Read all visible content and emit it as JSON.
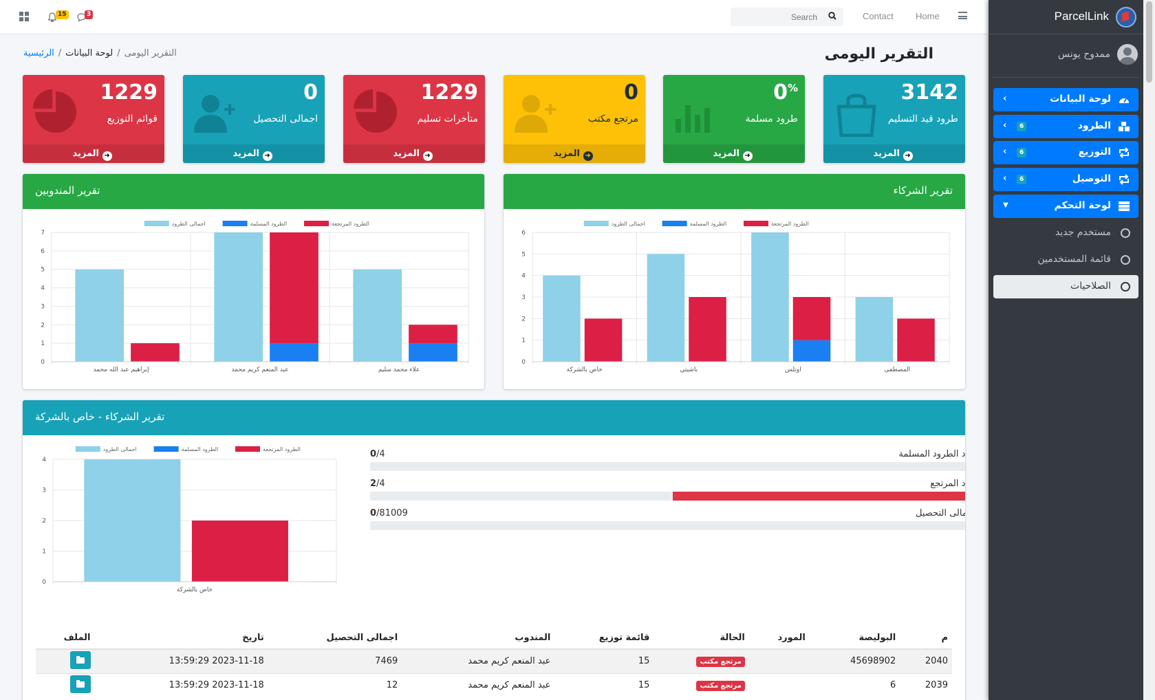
{
  "app": {
    "name": "ParcelLink"
  },
  "topbar": {
    "home": "Home",
    "contact": "Contact",
    "search_placeholder": "Search",
    "notifications_count": "15",
    "messages_count": "3"
  },
  "sidebar": {
    "user_name": "ممدوح يونس",
    "items": [
      {
        "label": "لوحة البيانات",
        "icon": "tachometer-icon",
        "badge": ""
      },
      {
        "label": "الطرود",
        "icon": "boxes-icon",
        "badge": "6"
      },
      {
        "label": "التوزيع",
        "icon": "retweet-icon",
        "badge": "6"
      },
      {
        "label": "التوصيل",
        "icon": "retweet-icon",
        "badge": "6"
      },
      {
        "label": "لوحة التحكم",
        "icon": "server-icon",
        "badge": ""
      }
    ],
    "sub_items": [
      {
        "label": "مستخدم جديد"
      },
      {
        "label": "قائمة المستخدمين"
      },
      {
        "label": "الصلاحيات"
      }
    ]
  },
  "page": {
    "title": "التقرير اليومى",
    "breadcrumb": {
      "home": "الرئيسية",
      "section": "لوحة البيانات",
      "current": "التقرير اليومى"
    }
  },
  "boxes": [
    {
      "value": "3142",
      "suffix": "",
      "label": "طرود قيد التسليم",
      "more": "المزيد",
      "color": "#17a2b8",
      "icon": "shopping-bag-icon"
    },
    {
      "value": "0",
      "suffix": "%",
      "label": "طرود مسلمة",
      "more": "المزيد",
      "color": "#28a745",
      "icon": "bar-chart-icon"
    },
    {
      "value": "0",
      "suffix": "",
      "label": "مرتجع مكتب",
      "more": "المزيد",
      "color": "#ffc107",
      "icon": "user-plus-icon"
    },
    {
      "value": "1229",
      "suffix": "",
      "label": "متأخرات تسليم",
      "more": "المزيد",
      "color": "#dc3545",
      "icon": "pie-chart-icon"
    },
    {
      "value": "0",
      "suffix": "",
      "label": "اجمالى التحصيل",
      "more": "المزيد",
      "color": "#17a2b8",
      "icon": "user-plus-icon"
    },
    {
      "value": "1229",
      "suffix": "",
      "label": "قوائم التوزيع",
      "more": "المزيد",
      "color": "#dc3545",
      "icon": "pie-chart-icon"
    }
  ],
  "cards": {
    "partners": "تقرير الشركاء",
    "delegates": "تقرير المندوبين",
    "company": "تقرير الشركاء - خاص بالشركة"
  },
  "legend": {
    "total": "اجمالى الطرود",
    "delivered": "الطرود المسلمة",
    "returned": "الطرود المرتجعة"
  },
  "colors": {
    "total": "#8ed1e8",
    "delivered": "#1a7ff0",
    "returned": "#dc1f45"
  },
  "chart_data": [
    {
      "type": "bar",
      "title": "تقرير الشركاء",
      "categories": [
        "خاص بالشركة",
        "باشيتي",
        "اوتلس",
        "المصطفى"
      ],
      "series": [
        {
          "name": "اجمالى الطرود",
          "values": [
            4,
            5,
            6,
            3
          ]
        },
        {
          "name": "الطرود المسلمة",
          "values": [
            0,
            0,
            1,
            0
          ]
        },
        {
          "name": "الطرود المرتجعة",
          "values": [
            2,
            3,
            2,
            2
          ]
        }
      ],
      "stacked_groups": [
        [
          "اجمالى الطرود"
        ],
        [
          "الطرود المسلمة",
          "الطرود المرتجعة"
        ]
      ],
      "ylim": [
        0,
        6
      ]
    },
    {
      "type": "bar",
      "title": "تقرير المندوبين",
      "categories": [
        "إبراهيم عبد الله محمد",
        "عبد المنعم كريم محمد",
        "علاء محمد سليم"
      ],
      "series": [
        {
          "name": "اجمالى الطرود",
          "values": [
            5,
            7,
            5
          ]
        },
        {
          "name": "الطرود المسلمة",
          "values": [
            0,
            1,
            1
          ]
        },
        {
          "name": "الطرود المرتجعة",
          "values": [
            1,
            6,
            1
          ]
        }
      ],
      "stacked_groups": [
        [
          "اجمالى الطرود"
        ],
        [
          "الطرود المسلمة",
          "الطرود المرتجعة"
        ]
      ],
      "ylim": [
        0,
        7
      ]
    },
    {
      "type": "bar",
      "title": "تقرير الشركاء - خاص بالشركة",
      "categories": [
        "خاص بالشركة"
      ],
      "series": [
        {
          "name": "اجمالى الطرود",
          "values": [
            4
          ]
        },
        {
          "name": "الطرود المسلمة",
          "values": [
            0
          ]
        },
        {
          "name": "الطرود المرتجعة",
          "values": [
            2
          ]
        }
      ],
      "stacked_groups": [
        [
          "اجمالى الطرود"
        ],
        [
          "الطرود المسلمة",
          "الطرود المرتجعة"
        ]
      ],
      "ylim": [
        0,
        4
      ]
    }
  ],
  "progress": [
    {
      "label": "عدد الطرود المسلمة",
      "value": "0",
      "total": "/4",
      "fraction": 0
    },
    {
      "label": "عدد المرتجع",
      "value": "2",
      "total": "/4",
      "fraction": 0.5
    },
    {
      "label": "اجمالى التحصيل",
      "value": "0",
      "total": "/81009",
      "fraction": 0
    }
  ],
  "table": {
    "headers": [
      "م",
      "البوليصة",
      "المورد",
      "الحالة",
      "قائمة توزيع",
      "المندوب",
      "اجمالى التحصيل",
      "تاريخ",
      "الملف"
    ],
    "rows": [
      {
        "id": "2040",
        "policy": "45698902",
        "supplier": "",
        "status": "مرتجع مكتب",
        "list": "15",
        "delegate": "عبد المنعم كريم محمد",
        "total": "7469",
        "date": "2023-11-18 13:59:29"
      },
      {
        "id": "2039",
        "policy": "6",
        "supplier": "",
        "status": "مرتجع مكتب",
        "list": "15",
        "delegate": "عبد المنعم كريم محمد",
        "total": "12",
        "date": "2023-11-18 13:59:29"
      }
    ]
  }
}
